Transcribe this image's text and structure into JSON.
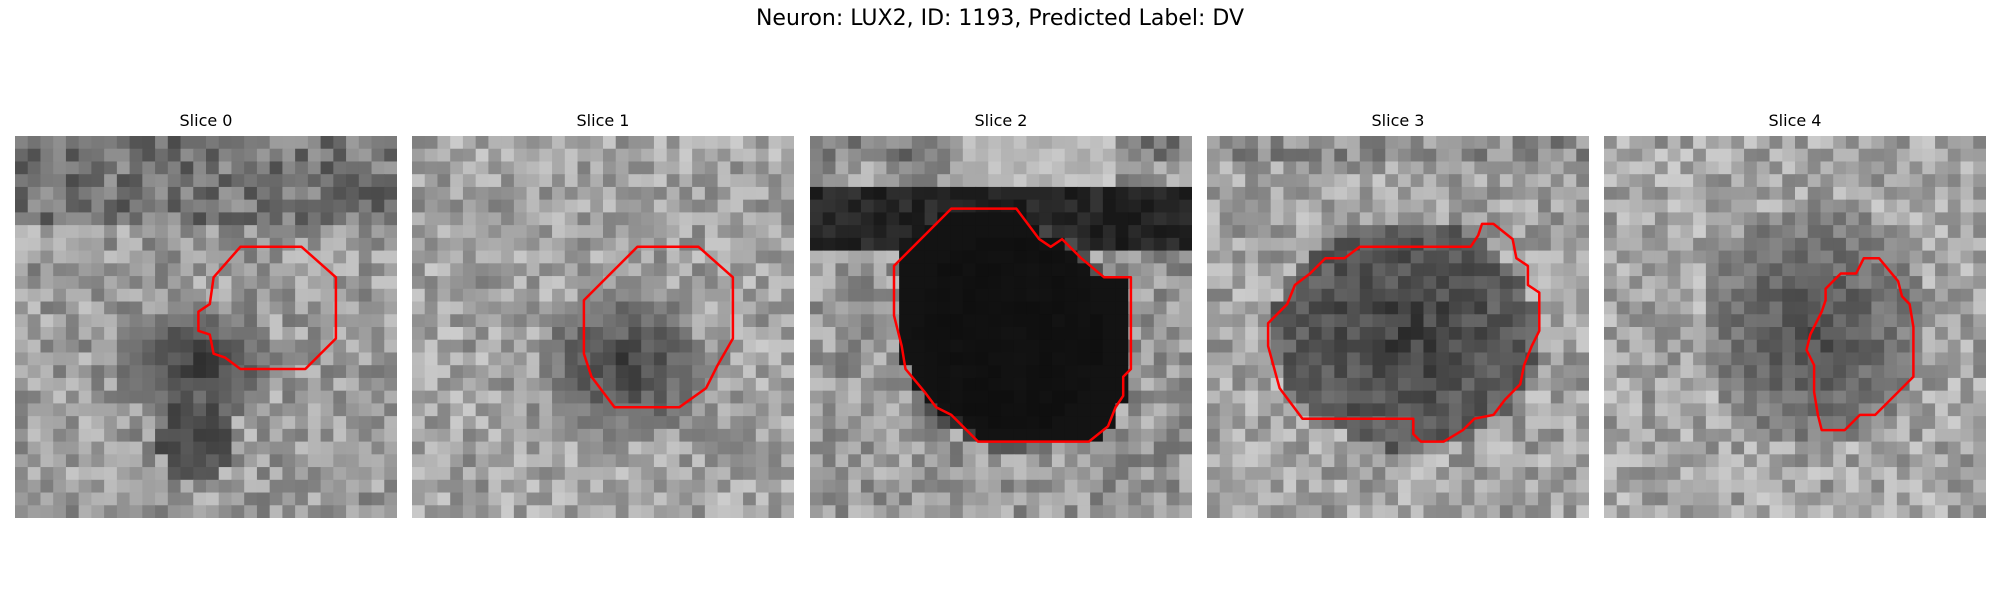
{
  "figure": {
    "title": "Neuron: LUX2, ID: 1193, Predicted Label: DV",
    "contour_color": "#ff0000",
    "colormap": "gray"
  },
  "slices": [
    {
      "title": "Slice 0"
    },
    {
      "title": "Slice 1"
    },
    {
      "title": "Slice 2"
    },
    {
      "title": "Slice 3"
    },
    {
      "title": "Slice 4"
    }
  ]
}
